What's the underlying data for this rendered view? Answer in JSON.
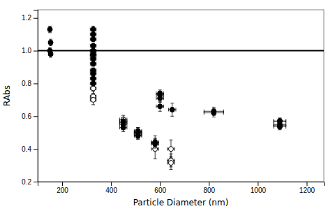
{
  "chart_data": {
    "type": "scatter",
    "xlabel": "Particle Diameter (nm)",
    "ylabel": "RAbs",
    "xlim": [
      100,
      1270
    ],
    "ylim": [
      0.2,
      1.25
    ],
    "xticks": [
      200,
      400,
      600,
      800,
      1000,
      1200
    ],
    "yticks": [
      0.2,
      0.4,
      0.6,
      0.8,
      {
        "value": 1.0,
        "label": "1.0"
      },
      1.2
    ],
    "grid": false,
    "hline_y": 1.0,
    "series": [
      {
        "color": "#000000",
        "marker": "circle",
        "x": [
          150,
          153,
          150,
          153,
          327,
          327,
          327,
          327,
          327,
          327,
          327,
          327,
          327,
          327,
          327,
          327,
          450,
          450,
          450,
          510,
          510,
          510,
          580,
          580,
          600,
          600,
          600,
          600,
          650,
          820,
          820,
          1090,
          1090,
          1090,
          1090,
          1090
        ],
        "values": [
          1.13,
          1.05,
          1.0,
          0.98,
          1.13,
          1.1,
          1.07,
          1.03,
          1.0,
          0.98,
          0.95,
          0.92,
          0.88,
          0.86,
          0.83,
          0.8,
          0.57,
          0.55,
          0.53,
          0.51,
          0.5,
          0.48,
          0.44,
          0.43,
          0.66,
          0.71,
          0.73,
          0.74,
          0.64,
          0.62,
          0.63,
          0.57,
          0.57,
          0.55,
          0.545,
          0.535
        ],
        "xerr": [
          8,
          8,
          8,
          8,
          12,
          12,
          12,
          12,
          12,
          12,
          12,
          12,
          12,
          12,
          12,
          12,
          15,
          15,
          15,
          15,
          15,
          15,
          15,
          15,
          15,
          15,
          15,
          15,
          15,
          40,
          40,
          25,
          25,
          25,
          25,
          25
        ],
        "yerr": [
          0.02,
          0.02,
          0.02,
          0.02,
          0.02,
          0.02,
          0.015,
          0.015,
          0.015,
          0.015,
          0.015,
          0.015,
          0.015,
          0.015,
          0.015,
          0.015,
          0.025,
          0.025,
          0.025,
          0.02,
          0.02,
          0.02,
          0.025,
          0.025,
          0.03,
          0.025,
          0.02,
          0.02,
          0.04,
          0.025,
          0.025,
          0.018,
          0.018,
          0.018,
          0.018,
          0.018
        ]
      },
      {
        "color": "#000000",
        "marker": "circle-open",
        "x": [
          327,
          327,
          327,
          327,
          450,
          450,
          510,
          510,
          510,
          580,
          580,
          645,
          645,
          645
        ],
        "values": [
          0.97,
          0.77,
          0.72,
          0.7,
          0.58,
          0.56,
          0.505,
          0.495,
          0.485,
          0.44,
          0.4,
          0.4,
          0.33,
          0.315
        ],
        "xerr": [
          12,
          12,
          12,
          12,
          15,
          15,
          15,
          15,
          15,
          15,
          15,
          15,
          15,
          15
        ],
        "yerr": [
          0.04,
          0.03,
          0.03,
          0.03,
          0.025,
          0.025,
          0.025,
          0.025,
          0.025,
          0.04,
          0.06,
          0.055,
          0.04,
          0.04
        ]
      }
    ]
  }
}
